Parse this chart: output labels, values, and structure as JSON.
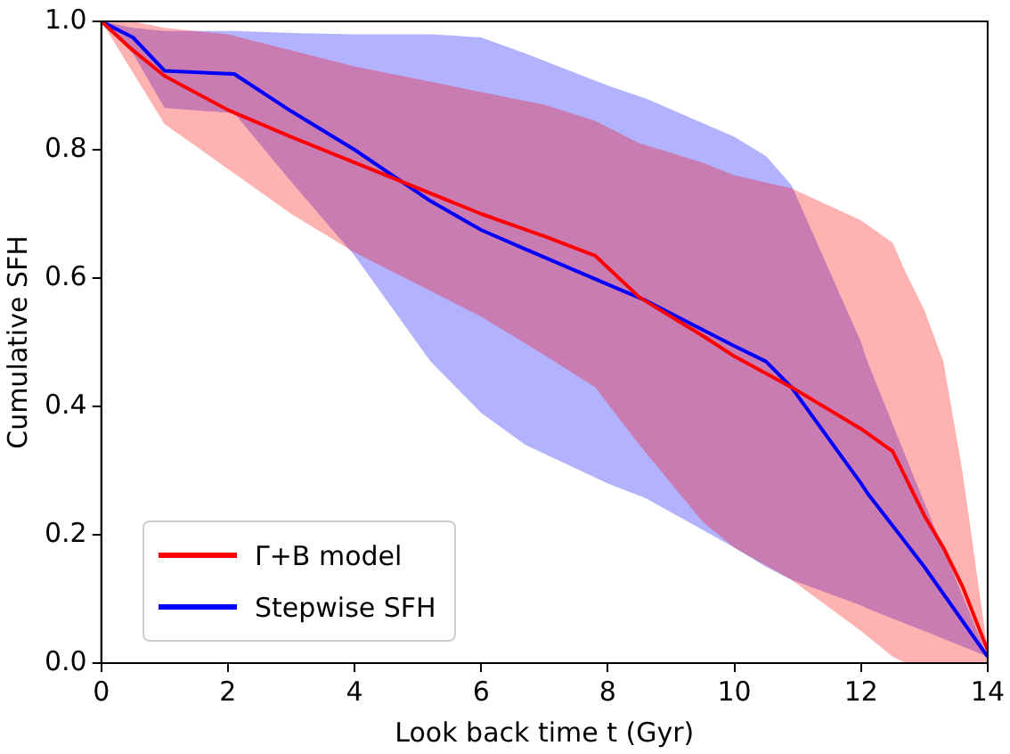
{
  "chart_data": {
    "type": "line",
    "xlabel": "Look back time t (Gyr)",
    "ylabel": "Cumulative SFH",
    "xlim": [
      0,
      14
    ],
    "ylim": [
      0,
      1
    ],
    "xticks": [
      0,
      2,
      4,
      6,
      8,
      10,
      12,
      14
    ],
    "yticks": [
      {
        "value": 0,
        "label": "0.0"
      },
      {
        "value": 0.2,
        "label": "0.2"
      },
      {
        "value": 0.4,
        "label": "0.4"
      },
      {
        "value": 0.6,
        "label": "0.6"
      },
      {
        "value": 0.8,
        "label": "0.8"
      },
      {
        "value": 1,
        "label": "1.0"
      }
    ],
    "grid": false,
    "legend": "bottom left",
    "marker": "none",
    "line_style": "solid",
    "series": [
      {
        "name": "Γ+B model",
        "color": "#ff0000",
        "x": [
          0,
          0.5,
          1,
          2,
          3,
          4,
          5,
          6,
          7,
          7.8,
          8.5,
          9.5,
          10,
          10.9,
          12,
          12.5,
          12.7,
          13,
          13.3,
          13.6,
          14
        ],
        "values": [
          1,
          0.955,
          0.915,
          0.862,
          0.82,
          0.78,
          0.74,
          0.7,
          0.665,
          0.635,
          0.57,
          0.51,
          0.478,
          0.43,
          0.365,
          0.33,
          0.29,
          0.23,
          0.18,
          0.12,
          0.02
        ],
        "upper": [
          1,
          1,
          0.99,
          0.98,
          0.955,
          0.93,
          0.91,
          0.89,
          0.87,
          0.845,
          0.81,
          0.78,
          0.76,
          0.74,
          0.69,
          0.655,
          0.61,
          0.55,
          0.47,
          0.3,
          0.02
        ],
        "lower": [
          1,
          0.92,
          0.84,
          0.77,
          0.7,
          0.64,
          0.59,
          0.54,
          0.48,
          0.43,
          0.34,
          0.22,
          0.18,
          0.13,
          0.05,
          0.01,
          0,
          0,
          0,
          0,
          0
        ]
      },
      {
        "name": "Stepwise SFH",
        "color": "#0000ff",
        "x": [
          0,
          0.5,
          1,
          2.1,
          3,
          4,
          5.2,
          6,
          6.7,
          8,
          8.6,
          10,
          10.5,
          10.9,
          12,
          12.1,
          13,
          14
        ],
        "values": [
          1,
          0.975,
          0.923,
          0.918,
          0.86,
          0.8,
          0.72,
          0.675,
          0.645,
          0.59,
          0.565,
          0.494,
          0.47,
          0.43,
          0.28,
          0.265,
          0.15,
          0.01
        ],
        "upper": [
          1,
          0.99,
          0.985,
          0.985,
          0.982,
          0.98,
          0.98,
          0.975,
          0.95,
          0.9,
          0.88,
          0.82,
          0.79,
          0.745,
          0.5,
          0.47,
          0.25,
          0.01
        ],
        "lower": [
          1,
          0.95,
          0.865,
          0.857,
          0.75,
          0.635,
          0.47,
          0.39,
          0.34,
          0.28,
          0.257,
          0.18,
          0.15,
          0.13,
          0.09,
          0.085,
          0.05,
          0.01
        ]
      }
    ]
  }
}
